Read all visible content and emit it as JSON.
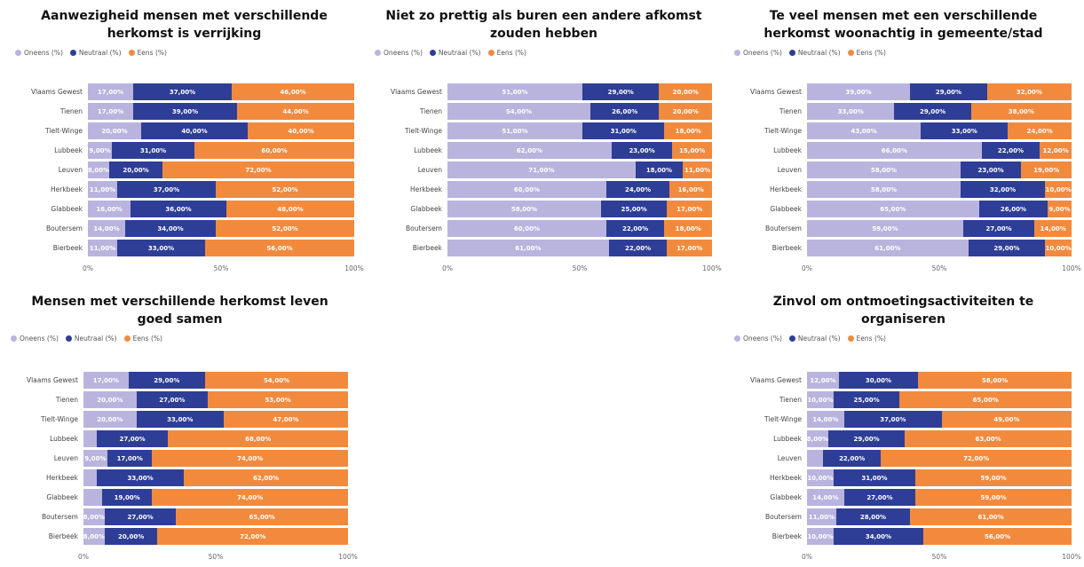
{
  "legend": {
    "oneens": "Oneens (%)",
    "neutraal": "Neutraal (%)",
    "eens": "Eens (%)"
  },
  "colors": {
    "oneens": "#b9b4de",
    "neutraal": "#2e3e96",
    "eens": "#f28a3e"
  },
  "chart_data": [
    {
      "type": "bar",
      "title": "Aanwezigheid mensen met verschillende herkomst is verrijking",
      "categories": [
        "Vlaams Gewest",
        "Tienen",
        "Tielt-Winge",
        "Lubbeek",
        "Leuven",
        "Herkbeek",
        "Glabbeek",
        "Boutersem",
        "Bierbeek"
      ],
      "series": [
        {
          "name": "Oneens (%)",
          "values": [
            17,
            17,
            20,
            9,
            8,
            11,
            16,
            14,
            11
          ]
        },
        {
          "name": "Neutraal (%)",
          "values": [
            37,
            39,
            40,
            31,
            20,
            37,
            36,
            34,
            33
          ]
        },
        {
          "name": "Eens (%)",
          "values": [
            46,
            44,
            40,
            60,
            72,
            52,
            48,
            52,
            56
          ]
        }
      ],
      "xticks": [
        "0%",
        "50%",
        "100%"
      ],
      "xlim": [
        0,
        100
      ]
    },
    {
      "type": "bar",
      "title": "Niet zo prettig als buren een andere afkomst zouden hebben",
      "categories": [
        "Vlaams Gewest",
        "Tienen",
        "Tielt-Winge",
        "Lubbeek",
        "Leuven",
        "Herkbeek",
        "Glabbeek",
        "Boutersem",
        "Bierbeek"
      ],
      "series": [
        {
          "name": "Oneens (%)",
          "values": [
            51,
            54,
            51,
            62,
            71,
            60,
            58,
            60,
            61
          ]
        },
        {
          "name": "Neutraal (%)",
          "values": [
            29,
            26,
            31,
            23,
            18,
            24,
            25,
            22,
            22
          ]
        },
        {
          "name": "Eens (%)",
          "values": [
            20,
            20,
            18,
            15,
            11,
            16,
            17,
            18,
            17
          ]
        }
      ],
      "xticks": [
        "0%",
        "50%",
        "100%"
      ],
      "xlim": [
        0,
        100
      ]
    },
    {
      "type": "bar",
      "title": "Te veel mensen met een verschillende herkomst woonachtig in gemeente/stad",
      "categories": [
        "Vlaams Gewest",
        "Tienen",
        "Tielt-Winge",
        "Lubbeek",
        "Leuven",
        "Herkbeek",
        "Glabbeek",
        "Boutersem",
        "Bierbeek"
      ],
      "series": [
        {
          "name": "Oneens (%)",
          "values": [
            39,
            33,
            43,
            66,
            58,
            58,
            65,
            59,
            61
          ]
        },
        {
          "name": "Neutraal (%)",
          "values": [
            29,
            29,
            33,
            22,
            23,
            32,
            26,
            27,
            29
          ]
        },
        {
          "name": "Eens (%)",
          "values": [
            32,
            38,
            24,
            12,
            19,
            10,
            9,
            14,
            10
          ]
        }
      ],
      "xticks": [
        "0%",
        "50%",
        "100%"
      ],
      "xlim": [
        0,
        100
      ]
    },
    {
      "type": "bar",
      "title": "Mensen met verschillende herkomst leven goed samen",
      "categories": [
        "Vlaams Gewest",
        "Tienen",
        "Tielt-Winge",
        "Lubbeek",
        "Leuven",
        "Herkbeek",
        "Glabbeek",
        "Boutersem",
        "Bierbeek"
      ],
      "series": [
        {
          "name": "Oneens (%)",
          "values": [
            17,
            20,
            20,
            5,
            9,
            5,
            7,
            8,
            8
          ]
        },
        {
          "name": "Neutraal (%)",
          "values": [
            29,
            27,
            33,
            27,
            17,
            33,
            19,
            27,
            20
          ]
        },
        {
          "name": "Eens (%)",
          "values": [
            54,
            53,
            47,
            68,
            74,
            62,
            74,
            65,
            72
          ]
        }
      ],
      "xticks": [
        "0%",
        "50%",
        "100%"
      ],
      "xlim": [
        0,
        100
      ]
    },
    {
      "type": "bar",
      "title": "Zinvol om ontmoetingsactiviteiten te organiseren",
      "categories": [
        "Vlaams Gewest",
        "Tienen",
        "Tielt-Winge",
        "Lubbeek",
        "Leuven",
        "Herkbeek",
        "Glabbeek",
        "Boutersem",
        "Bierbeek"
      ],
      "series": [
        {
          "name": "Oneens (%)",
          "values": [
            12,
            10,
            14,
            8,
            6,
            10,
            14,
            11,
            10
          ]
        },
        {
          "name": "Neutraal (%)",
          "values": [
            30,
            25,
            37,
            29,
            22,
            31,
            27,
            28,
            34
          ]
        },
        {
          "name": "Eens (%)",
          "values": [
            58,
            65,
            49,
            63,
            72,
            59,
            59,
            61,
            56
          ]
        }
      ],
      "xticks": [
        "0%",
        "50%",
        "100%"
      ],
      "xlim": [
        0,
        100
      ]
    }
  ]
}
